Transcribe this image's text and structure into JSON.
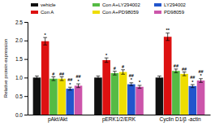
{
  "chart_data": {
    "type": "bar",
    "categories": [
      "pAkt/Akt",
      "pERK1/2/ERK",
      "Cyclin D1/β -actin"
    ],
    "series": [
      {
        "name": "vehicle",
        "color": "#111111",
        "values": [
          1.0,
          1.0,
          1.0
        ],
        "errors": [
          0.04,
          0.04,
          0.04
        ],
        "annotations": [
          [],
          [],
          []
        ]
      },
      {
        "name": "Con A",
        "color": "#dd1111",
        "values": [
          1.98,
          1.47,
          2.1
        ],
        "errors": [
          0.1,
          0.06,
          0.1
        ],
        "annotations": [
          [
            "*"
          ],
          [
            "*"
          ],
          [
            "**"
          ]
        ]
      },
      {
        "name": "Con A+LY294002",
        "color": "#55bb44",
        "values": [
          0.97,
          1.12,
          1.18
        ],
        "errors": [
          0.05,
          0.05,
          0.05
        ],
        "annotations": [
          [
            "#"
          ],
          [
            "#"
          ],
          [
            "##"
          ]
        ]
      },
      {
        "name": "Con A+PD98059",
        "color": "#eedd00",
        "values": [
          0.97,
          1.15,
          1.1
        ],
        "errors": [
          0.05,
          0.06,
          0.05
        ],
        "annotations": [
          [
            "##"
          ],
          [
            "#"
          ],
          [
            "##"
          ]
        ]
      },
      {
        "name": "LY294002",
        "color": "#2255cc",
        "values": [
          0.7,
          0.82,
          0.77
        ],
        "errors": [
          0.04,
          0.04,
          0.04
        ],
        "annotations": [
          [
            "*",
            "##"
          ],
          [
            "*",
            "##"
          ],
          [
            "*",
            "##"
          ]
        ]
      },
      {
        "name": "PD98059",
        "color": "#cc55aa",
        "values": [
          0.78,
          0.75,
          0.92
        ],
        "errors": [
          0.05,
          0.04,
          0.05
        ],
        "annotations": [
          [
            "*",
            "##"
          ],
          [
            "*"
          ],
          [
            "*",
            "##"
          ]
        ]
      }
    ],
    "ylabel": "Relative protein expression",
    "ylim": [
      0.0,
      2.5
    ],
    "yticks": [
      {
        "value": 0.0,
        "label": "0.0"
      },
      0.5,
      {
        "value": 1.0,
        "label": "1.0"
      },
      1.5,
      {
        "value": 2.0,
        "label": "2.0"
      },
      2.5
    ],
    "legend": "top"
  }
}
